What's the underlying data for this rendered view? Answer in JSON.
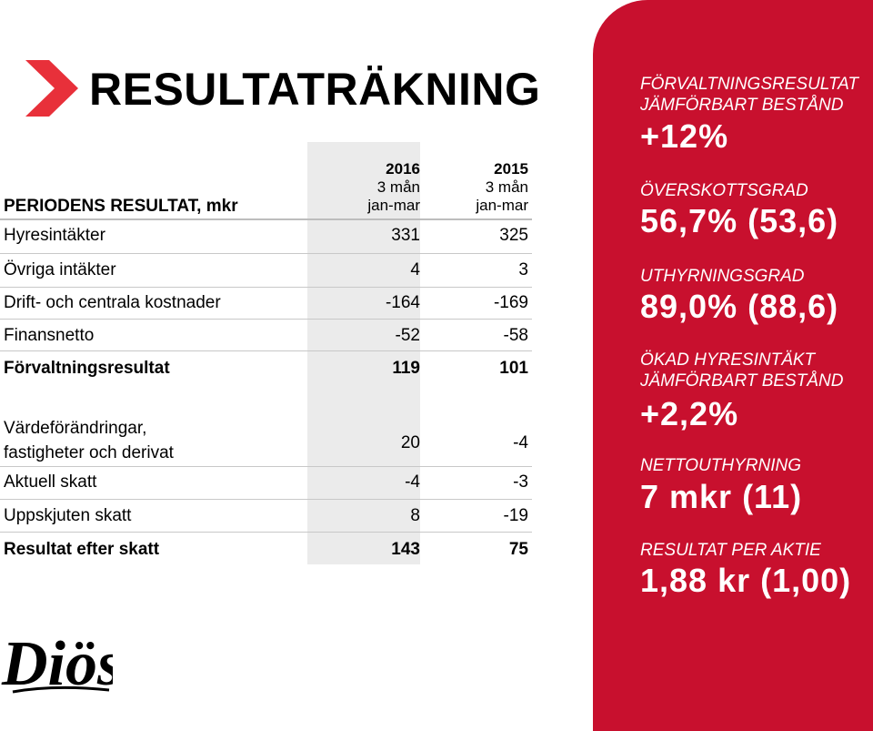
{
  "title": "RESULTATRÄKNING",
  "table": {
    "header_label": "PERIODENS RESULTAT, mkr",
    "columns": [
      {
        "year": "2016",
        "period": "3 mån",
        "range": "jan-mar"
      },
      {
        "year": "2015",
        "period": "3 mån",
        "range": "jan-mar"
      }
    ],
    "rows": [
      {
        "label": "Hyresintäkter",
        "v2016": "331",
        "v2015": "325"
      },
      {
        "label": "Övriga intäkter",
        "v2016": "4",
        "v2015": "3"
      },
      {
        "label": "Drift- och centrala kostnader",
        "v2016": "-164",
        "v2015": "-169"
      },
      {
        "label": "Finansnetto",
        "v2016": "-52",
        "v2015": "-58"
      },
      {
        "label": "Förvaltningsresultat",
        "v2016": "119",
        "v2015": "101"
      },
      {
        "label": "Värdeförändringar,",
        "label2": "fastigheter och derivat",
        "v2016": "20",
        "v2015": "-4"
      },
      {
        "label": "Aktuell skatt",
        "v2016": "-4",
        "v2015": "-3"
      },
      {
        "label": "Uppskjuten skatt",
        "v2016": "8",
        "v2015": "-19"
      },
      {
        "label": "Resultat efter skatt",
        "v2016": "143",
        "v2015": "75"
      }
    ]
  },
  "kpis": [
    {
      "label1": "FÖRVALTNINGSRESULTAT",
      "label2": "JÄMFÖRBART BESTÅND",
      "value": "+12%"
    },
    {
      "label1": "ÖVERSKOTTSGRAD",
      "value": "56,7% (53,6)"
    },
    {
      "label1": "UTHYRNINGSGRAD",
      "value": "89,0% (88,6)"
    },
    {
      "label1": "ÖKAD HYRESINTÄKT",
      "label2": "JÄMFÖRBART BESTÅND",
      "value": "+2,2%"
    },
    {
      "label1": "NETTOUTHYRNING",
      "value": "7 mkr (11)"
    },
    {
      "label1": "RESULTAT PER AKTIE",
      "value": "1,88 kr (1,00)"
    }
  ],
  "logo": {
    "text": "Diös"
  },
  "colors": {
    "accent": "#c8102e",
    "shade": "#ebebeb"
  }
}
